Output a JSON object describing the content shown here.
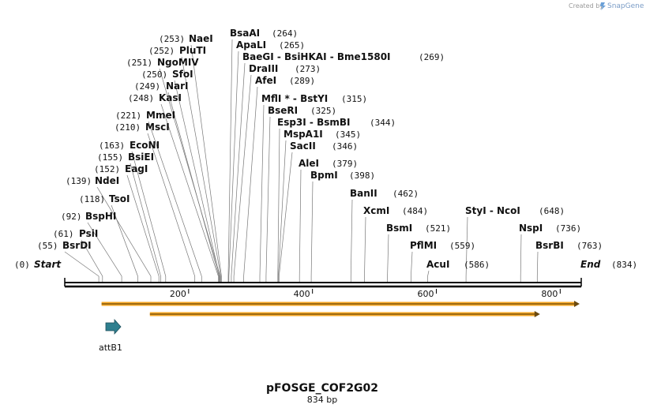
{
  "credit": {
    "prefix": "Created by",
    "brand": "SnapGene"
  },
  "map": {
    "name": "pFOSGE_COF2G02",
    "length_label": "834 bp",
    "length": 834,
    "ticks": [
      "200",
      "400",
      "600",
      "800"
    ],
    "ends": {
      "start": {
        "label": "Start",
        "pos": "(0)"
      },
      "end": {
        "label": "End",
        "pos": "(834)"
      }
    },
    "features": [
      {
        "name": "attB1",
        "type": "misc_feature",
        "start": 55,
        "end": 75,
        "color": "#2f7f8f"
      }
    ],
    "orfs": [
      {
        "start": 62,
        "end": 834,
        "color": "#f5a623"
      },
      {
        "start": 140,
        "end": 770,
        "color": "#f5a623"
      }
    ]
  },
  "sites": [
    {
      "name": "BsrDI",
      "pos": 55,
      "pos_label": "(55)"
    },
    {
      "name": "PsiI",
      "pos": 61,
      "pos_label": "(61)"
    },
    {
      "name": "BspHI",
      "pos": 92,
      "pos_label": "(92)"
    },
    {
      "name": "TsoI",
      "pos": 118,
      "pos_label": "(118)"
    },
    {
      "name": "NdeI",
      "pos": 139,
      "pos_label": "(139)"
    },
    {
      "name": "EagI",
      "pos": 152,
      "pos_label": "(152)"
    },
    {
      "name": "BsiEI",
      "pos": 155,
      "pos_label": "(155)"
    },
    {
      "name": "EcoNI",
      "pos": 163,
      "pos_label": "(163)"
    },
    {
      "name": "MscI",
      "pos": 210,
      "pos_label": "(210)"
    },
    {
      "name": "MmeI",
      "pos": 221,
      "pos_label": "(221)"
    },
    {
      "name": "KasI",
      "pos": 248,
      "pos_label": "(248)"
    },
    {
      "name": "NarI",
      "pos": 249,
      "pos_label": "(249)"
    },
    {
      "name": "SfoI",
      "pos": 250,
      "pos_label": "(250)"
    },
    {
      "name": "NgoMIV",
      "pos": 251,
      "pos_label": "(251)"
    },
    {
      "name": "PluTI",
      "pos": 252,
      "pos_label": "(252)"
    },
    {
      "name": "NaeI",
      "pos": 253,
      "pos_label": "(253)"
    },
    {
      "name": "BsaAI",
      "pos": 264,
      "pos_label": "(264)"
    },
    {
      "name": "ApaLI",
      "pos": 265,
      "pos_label": "(265)"
    },
    {
      "name": "BaeGI  - BsiHKAI  - Bme1580I",
      "pos": 269,
      "pos_label": "(269)"
    },
    {
      "name": "DraIII",
      "pos": 273,
      "pos_label": "(273)"
    },
    {
      "name": "AfeI",
      "pos": 289,
      "pos_label": "(289)"
    },
    {
      "name": "MflI * - BstYI",
      "pos": 315,
      "pos_label": "(315)"
    },
    {
      "name": "BseRI",
      "pos": 325,
      "pos_label": "(325)"
    },
    {
      "name": "Esp3I  - BsmBI",
      "pos": 344,
      "pos_label": "(344)"
    },
    {
      "name": "MspA1I",
      "pos": 345,
      "pos_label": "(345)"
    },
    {
      "name": "SacII",
      "pos": 346,
      "pos_label": "(346)"
    },
    {
      "name": "AleI",
      "pos": 379,
      "pos_label": "(379)"
    },
    {
      "name": "BpmI",
      "pos": 398,
      "pos_label": "(398)"
    },
    {
      "name": "BanII",
      "pos": 462,
      "pos_label": "(462)"
    },
    {
      "name": "XcmI",
      "pos": 484,
      "pos_label": "(484)"
    },
    {
      "name": "BsmI",
      "pos": 521,
      "pos_label": "(521)"
    },
    {
      "name": "PflMI",
      "pos": 559,
      "pos_label": "(559)"
    },
    {
      "name": "AcuI",
      "pos": 586,
      "pos_label": "(586)"
    },
    {
      "name": "StyI  - NcoI",
      "pos": 648,
      "pos_label": "(648)"
    },
    {
      "name": "NspI",
      "pos": 736,
      "pos_label": "(736)"
    },
    {
      "name": "BsrBI",
      "pos": 763,
      "pos_label": "(763)"
    }
  ]
}
